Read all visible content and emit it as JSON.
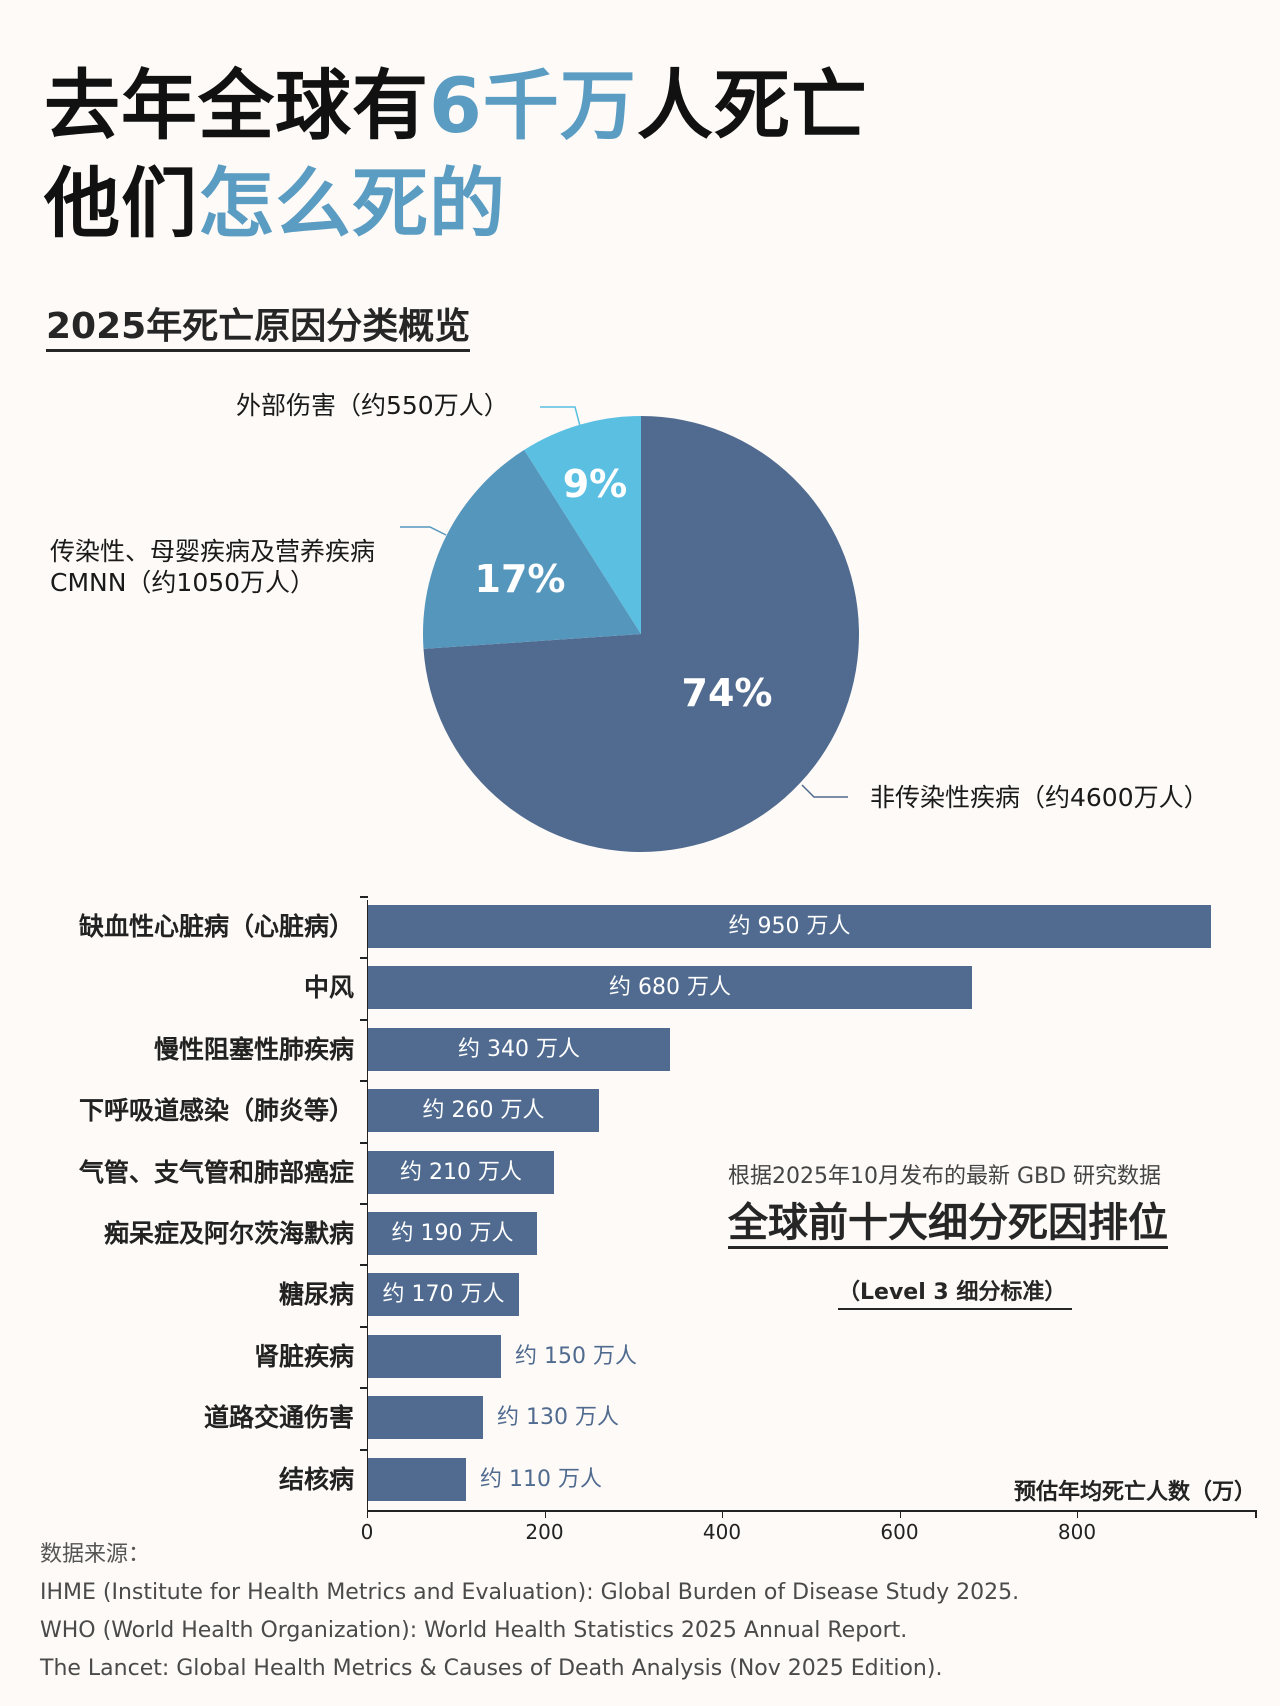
{
  "header": {
    "line1_part1": "去年全球有",
    "line1_highlight": "6千万",
    "line1_part2": "人死亡",
    "line2_part1": "他们",
    "line2_highlight": "怎么死的"
  },
  "colors": {
    "background": "#fdfaf7",
    "highlight": "#5a9cc2",
    "ncd": "#506b8f",
    "cmnn": "#5596bd",
    "injury": "#5bbfe2",
    "bar": "#506b8f"
  },
  "pie_section": {
    "title": "2025年死亡原因分类概览",
    "labels": {
      "injury": "外部伤害（约550万人）",
      "cmnn_line1": "传染性、母婴疾病及营养疾病",
      "cmnn_line2": "CMNN（约1050万人）",
      "ncd": "非传染性疾病（约4600万人）"
    },
    "pct": {
      "ncd": "74%",
      "cmnn": "17%",
      "injury": "9%"
    }
  },
  "bar_section": {
    "note_subtitle": "根据2025年10月发布的最新 GBD 研究数据",
    "note_title": "全球前十大细分死因排位",
    "note_level": "（Level 3 细分标准）",
    "axis_title": "预估年均死亡人数（万）",
    "ticks": [
      "0",
      "200",
      "400",
      "600",
      "800"
    ],
    "rows": [
      {
        "label": "缺血性心脏病（心脏病）",
        "value_label": "约 950 万人"
      },
      {
        "label": "中风",
        "value_label": "约 680 万人"
      },
      {
        "label": "慢性阻塞性肺疾病",
        "value_label": "约 340 万人"
      },
      {
        "label": "下呼吸道感染（肺炎等）",
        "value_label": "约 260 万人"
      },
      {
        "label": "气管、支气管和肺部癌症",
        "value_label": "约 210 万人"
      },
      {
        "label": "痴呆症及阿尔茨海默病",
        "value_label": "约 190 万人"
      },
      {
        "label": "糖尿病",
        "value_label": "约 170 万人"
      },
      {
        "label": "肾脏疾病",
        "value_label": "约 150 万人"
      },
      {
        "label": "道路交通伤害",
        "value_label": "约 130 万人"
      },
      {
        "label": "结核病",
        "value_label": "约 110 万人"
      }
    ]
  },
  "sources": {
    "heading": "数据来源：",
    "items": [
      "IHME (Institute for Health Metrics and Evaluation): Global Burden of Disease Study 2025.",
      "WHO (World Health Organization): World Health Statistics 2025 Annual Report.",
      "The Lancet: Global Health Metrics & Causes of Death Analysis (Nov 2025 Edition)."
    ]
  },
  "chart_data": [
    {
      "type": "pie",
      "title": "2025年死亡原因分类概览",
      "categories": [
        "非传染性疾病",
        "传染性、母婴疾病及营养疾病 CMNN",
        "外部伤害"
      ],
      "values": [
        74,
        17,
        9
      ],
      "counts_wan": [
        4600,
        1050,
        550
      ],
      "labels": [
        "非传染性疾病（约4600万人）",
        "传染性、母婴疾病及营养疾病 CMNN（约1050万人）",
        "外部伤害（约550万人）"
      ],
      "colors": [
        "#506b8f",
        "#5596bd",
        "#5bbfe2"
      ]
    },
    {
      "type": "bar",
      "orientation": "horizontal",
      "title": "全球前十大细分死因排位",
      "subtitle": "根据2025年10月发布的最新 GBD 研究数据（Level 3 细分标准）",
      "categories": [
        "缺血性心脏病（心脏病）",
        "中风",
        "慢性阻塞性肺疾病",
        "下呼吸道感染（肺炎等）",
        "气管、支气管和肺部癌症",
        "痴呆症及阿尔茨海默病",
        "糖尿病",
        "肾脏疾病",
        "道路交通伤害",
        "结核病"
      ],
      "values": [
        950,
        680,
        340,
        260,
        210,
        190,
        170,
        150,
        130,
        110
      ],
      "xlabel": "预估年均死亡人数（万）",
      "ylabel": "",
      "xlim": [
        0,
        1000
      ],
      "xticks": [
        0,
        200,
        400,
        600,
        800
      ],
      "grid": false
    }
  ]
}
